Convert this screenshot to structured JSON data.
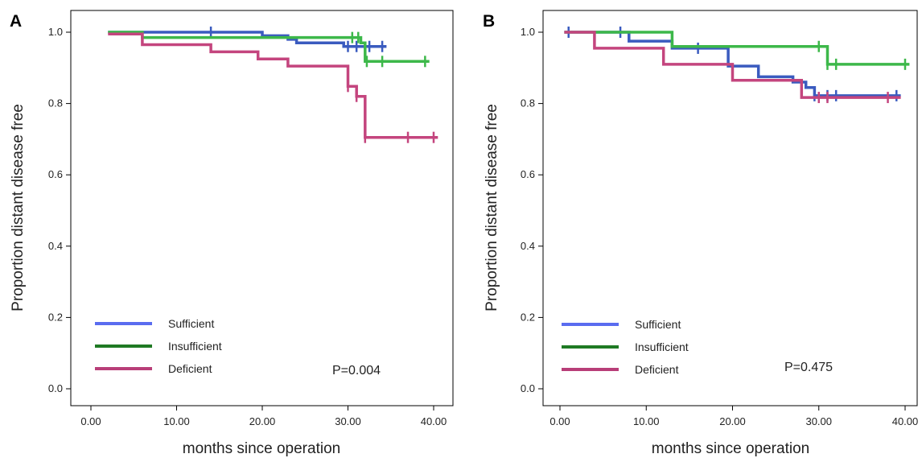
{
  "colors": {
    "sufficient_line": "#3a5bbf",
    "insufficient_line": "#3db84a",
    "deficient_line": "#c4457e",
    "sufficient_legend": "#5a6cf0",
    "insufficient_legend": "#1f7a24",
    "deficient_legend": "#b83e78"
  },
  "chart_data": [
    {
      "type": "line",
      "subtype": "kaplan-meier step",
      "panel_label": "A",
      "xlabel": "months since operation",
      "ylabel": "Proportion distant disease free",
      "xlim": [
        -2,
        42
      ],
      "ylim": [
        -0.02,
        1.06
      ],
      "xticks": [
        0,
        10,
        20,
        30,
        40
      ],
      "xtick_labels": [
        "0.00",
        "10.00",
        "20.00",
        "30.00",
        "40.00"
      ],
      "yticks": [
        0.0,
        0.2,
        0.4,
        0.6,
        0.8,
        1.0
      ],
      "ytick_labels": [
        "0.0",
        "0.2",
        "0.4",
        "0.6",
        "0.8",
        "1.0"
      ],
      "grid": false,
      "legend_position": "bottom-left",
      "annotation": "P=0.004",
      "series": [
        {
          "name": "Sufficient",
          "color_key": "sufficient_line",
          "points": [
            [
              2,
              1.0
            ],
            [
              20,
              1.0
            ],
            [
              20,
              0.99
            ],
            [
              23,
              0.99
            ],
            [
              23,
              0.98
            ],
            [
              24,
              0.98
            ],
            [
              24,
              0.97
            ],
            [
              29.5,
              0.97
            ],
            [
              29.5,
              0.96
            ],
            [
              34.5,
              0.96
            ]
          ],
          "censored": [
            [
              14,
              1.0
            ],
            [
              30,
              0.96
            ],
            [
              31,
              0.96
            ],
            [
              32.5,
              0.96
            ],
            [
              34,
              0.96
            ]
          ]
        },
        {
          "name": "Insufficient",
          "color_key": "insufficient_line",
          "points": [
            [
              2,
              1.0
            ],
            [
              6,
              1.0
            ],
            [
              6,
              0.985
            ],
            [
              31.5,
              0.985
            ],
            [
              31.5,
              0.97
            ],
            [
              32,
              0.97
            ],
            [
              32,
              0.918
            ],
            [
              39.5,
              0.918
            ]
          ],
          "censored": [
            [
              30.5,
              0.985
            ],
            [
              31.2,
              0.985
            ],
            [
              32.2,
              0.918
            ],
            [
              34,
              0.918
            ],
            [
              39,
              0.918
            ]
          ]
        },
        {
          "name": "Deficient",
          "color_key": "deficient_line",
          "points": [
            [
              2,
              0.995
            ],
            [
              6,
              0.995
            ],
            [
              6,
              0.965
            ],
            [
              14,
              0.965
            ],
            [
              14,
              0.945
            ],
            [
              19.5,
              0.945
            ],
            [
              19.5,
              0.925
            ],
            [
              23,
              0.925
            ],
            [
              23,
              0.905
            ],
            [
              30,
              0.905
            ],
            [
              30,
              0.848
            ],
            [
              31,
              0.848
            ],
            [
              31,
              0.82
            ],
            [
              32,
              0.82
            ],
            [
              32,
              0.705
            ],
            [
              40.5,
              0.705
            ]
          ],
          "censored": [
            [
              30,
              0.848
            ],
            [
              31,
              0.82
            ],
            [
              32,
              0.705
            ],
            [
              37,
              0.705
            ],
            [
              40,
              0.705
            ]
          ]
        }
      ]
    },
    {
      "type": "line",
      "subtype": "kaplan-meier step",
      "panel_label": "B",
      "xlabel": "months since operation",
      "ylabel": "Proportion distant disease free",
      "xlim": [
        -2,
        42
      ],
      "ylim": [
        -0.02,
        1.06
      ],
      "xticks": [
        0,
        10,
        20,
        30,
        40
      ],
      "xtick_labels": [
        "0.00",
        "10.00",
        "20.00",
        "30.00",
        "40.00"
      ],
      "yticks": [
        0.0,
        0.2,
        0.4,
        0.6,
        0.8,
        1.0
      ],
      "ytick_labels": [
        "0.0",
        "0.2",
        "0.4",
        "0.6",
        "0.8",
        "1.0"
      ],
      "grid": false,
      "legend_position": "bottom-left",
      "annotation": "P=0.475",
      "series": [
        {
          "name": "Sufficient",
          "color_key": "sufficient_line",
          "points": [
            [
              0.5,
              1.0
            ],
            [
              8,
              1.0
            ],
            [
              8,
              0.975
            ],
            [
              13,
              0.975
            ],
            [
              13,
              0.955
            ],
            [
              19.5,
              0.955
            ],
            [
              19.5,
              0.905
            ],
            [
              23,
              0.905
            ],
            [
              23,
              0.875
            ],
            [
              27,
              0.875
            ],
            [
              27,
              0.86
            ],
            [
              28.5,
              0.86
            ],
            [
              28.5,
              0.845
            ],
            [
              29.5,
              0.845
            ],
            [
              29.5,
              0.822
            ],
            [
              39.5,
              0.822
            ]
          ],
          "censored": [
            [
              1,
              1.0
            ],
            [
              7,
              1.0
            ],
            [
              16,
              0.955
            ],
            [
              29.5,
              0.822
            ],
            [
              31,
              0.822
            ],
            [
              32,
              0.822
            ],
            [
              39,
              0.822
            ]
          ]
        },
        {
          "name": "Insufficient",
          "color_key": "insufficient_line",
          "points": [
            [
              0.5,
              1.0
            ],
            [
              13,
              1.0
            ],
            [
              13,
              0.96
            ],
            [
              31,
              0.96
            ],
            [
              31,
              0.91
            ],
            [
              40.5,
              0.91
            ]
          ],
          "censored": [
            [
              30,
              0.96
            ],
            [
              31,
              0.91
            ],
            [
              32,
              0.91
            ],
            [
              40,
              0.91
            ]
          ]
        },
        {
          "name": "Deficient",
          "color_key": "deficient_line",
          "points": [
            [
              0.5,
              1.0
            ],
            [
              4,
              1.0
            ],
            [
              4,
              0.955
            ],
            [
              12,
              0.955
            ],
            [
              12,
              0.91
            ],
            [
              20,
              0.91
            ],
            [
              20,
              0.865
            ],
            [
              28,
              0.865
            ],
            [
              28,
              0.817
            ],
            [
              39.5,
              0.817
            ]
          ],
          "censored": [
            [
              30,
              0.817
            ],
            [
              31,
              0.817
            ],
            [
              38,
              0.817
            ]
          ]
        }
      ]
    }
  ]
}
